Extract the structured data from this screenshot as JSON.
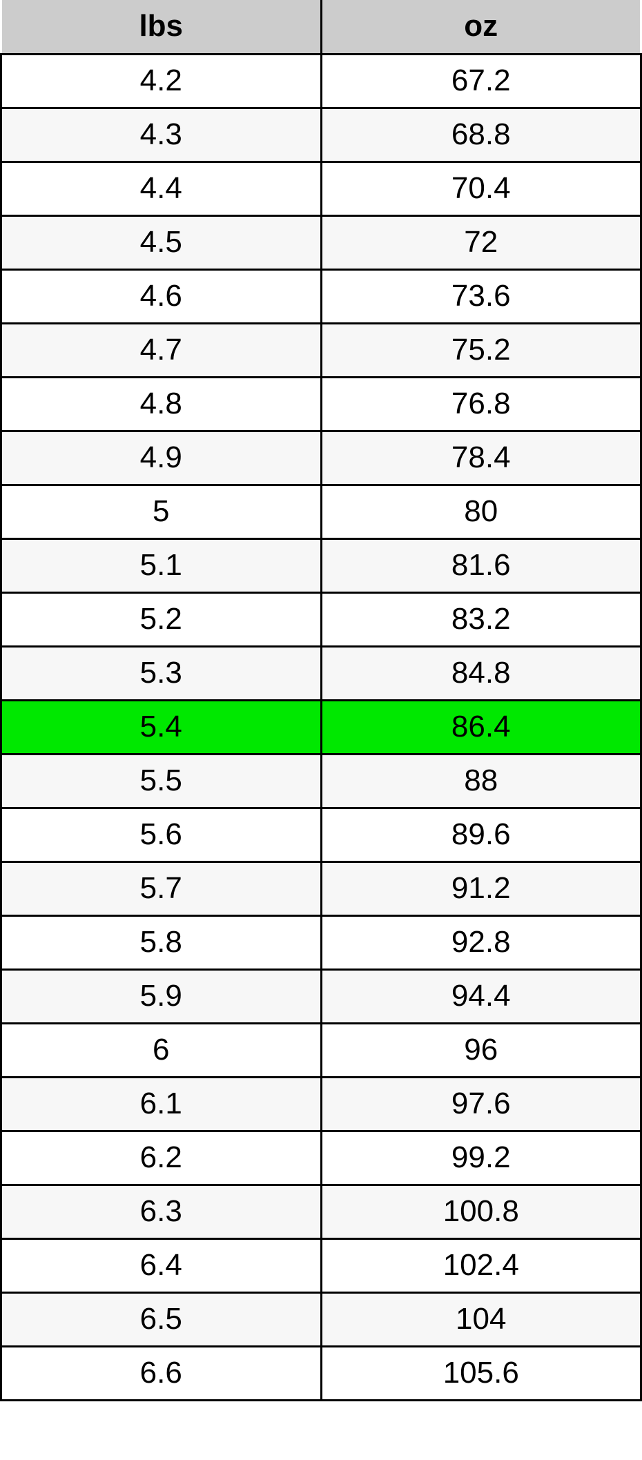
{
  "chart_data": {
    "type": "table",
    "columns": [
      "lbs",
      "oz"
    ],
    "rows": [
      [
        "4.2",
        "67.2"
      ],
      [
        "4.3",
        "68.8"
      ],
      [
        "4.4",
        "70.4"
      ],
      [
        "4.5",
        "72"
      ],
      [
        "4.6",
        "73.6"
      ],
      [
        "4.7",
        "75.2"
      ],
      [
        "4.8",
        "76.8"
      ],
      [
        "4.9",
        "78.4"
      ],
      [
        "5",
        "80"
      ],
      [
        "5.1",
        "81.6"
      ],
      [
        "5.2",
        "83.2"
      ],
      [
        "5.3",
        "84.8"
      ],
      [
        "5.4",
        "86.4"
      ],
      [
        "5.5",
        "88"
      ],
      [
        "5.6",
        "89.6"
      ],
      [
        "5.7",
        "91.2"
      ],
      [
        "5.8",
        "92.8"
      ],
      [
        "5.9",
        "94.4"
      ],
      [
        "6",
        "96"
      ],
      [
        "6.1",
        "97.6"
      ],
      [
        "6.2",
        "99.2"
      ],
      [
        "6.3",
        "100.8"
      ],
      [
        "6.4",
        "102.4"
      ],
      [
        "6.5",
        "104"
      ],
      [
        "6.6",
        "105.6"
      ]
    ],
    "highlight_index": 12,
    "highlighted_row": {
      "lbs": "5.4",
      "oz": "86.4"
    },
    "layout": {
      "alternating_rows": true,
      "first_row_shade": "white"
    }
  },
  "colors": {
    "header_bg": "#cccccc",
    "row_bg": "#ffffff",
    "alt_row_bg": "#f7f7f7",
    "highlight": "#00e800",
    "border": "#000000",
    "text": "#000000"
  }
}
